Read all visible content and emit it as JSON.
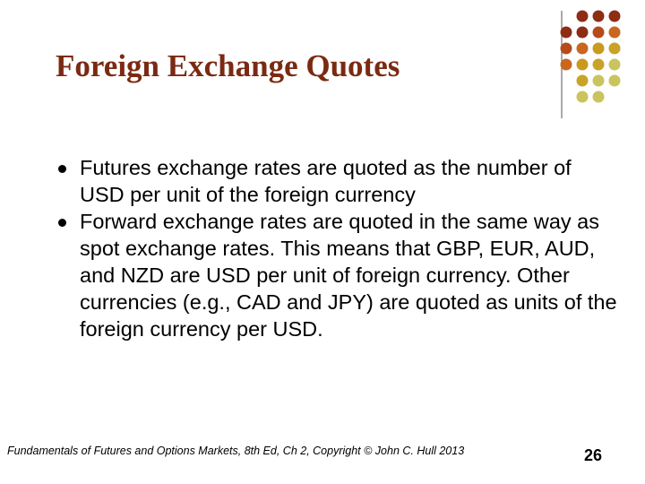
{
  "slide": {
    "title": "Foreign Exchange Quotes",
    "bullets": [
      "Futures exchange rates are quoted as the number of USD per unit of the foreign currency",
      "Forward exchange rates are quoted in the same way as spot exchange rates. This means that GBP, EUR, AUD, and NZD are USD per unit of foreign currency. Other currencies (e.g., CAD and JPY) are quoted as units of the foreign currency per USD."
    ],
    "footer": "Fundamentals of Futures and Options Markets, 8th Ed, Ch 2, Copyright © John C. Hull 2013",
    "page_number": 26
  }
}
